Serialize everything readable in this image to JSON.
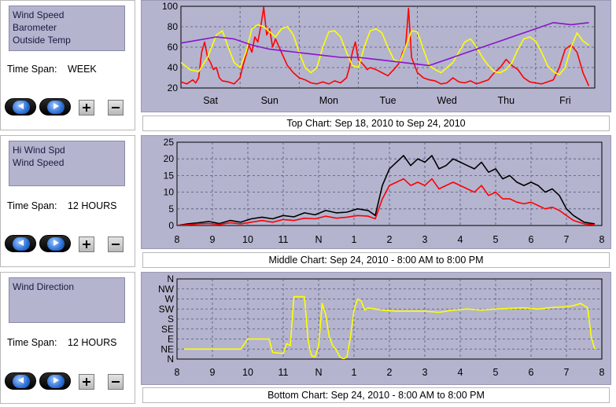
{
  "panels": [
    {
      "series_list": [
        "Wind Speed",
        "Barometer",
        "Outside Temp"
      ],
      "timespan_label": "Time Span:",
      "timespan_value": "WEEK",
      "caption": "Top Chart:  Sep 18, 2010  to  Sep 24, 2010"
    },
    {
      "series_list": [
        "Hi Wind Spd",
        "Wind Speed"
      ],
      "timespan_label": "Time Span:",
      "timespan_value": "12 HOURS",
      "caption": "Middle Chart:  Sep 24, 2010 - 8:00 AM  to  8:00 PM"
    },
    {
      "series_list": [
        "Wind Direction"
      ],
      "timespan_label": "Time Span:",
      "timespan_value": "12 HOURS",
      "caption": "Bottom Chart:  Sep 24, 2010 - 8:00 AM  to  8:00 PM"
    }
  ],
  "colors": {
    "plot_bg": "#b4b4cf",
    "grid": "#55557a",
    "red": "#ff0000",
    "yellow": "#ffff00",
    "purple": "#8a14c8",
    "black": "#000000"
  },
  "chart_data": [
    {
      "type": "line",
      "x_labels": [
        "Sat",
        "Sun",
        "Mon",
        "Tue",
        "Wed",
        "Thu",
        "Fri"
      ],
      "yticks": [
        "20",
        "40",
        "60",
        "80",
        "100"
      ],
      "ylim": [
        20,
        100
      ],
      "xlim": [
        0,
        7
      ],
      "grid": true,
      "series": [
        {
          "color": "#ff0000",
          "x": [
            0,
            0.1,
            0.2,
            0.25,
            0.3,
            0.35,
            0.4,
            0.45,
            0.5,
            0.55,
            0.6,
            0.65,
            0.7,
            0.8,
            0.9,
            1.0,
            1.05,
            1.1,
            1.15,
            1.2,
            1.25,
            1.3,
            1.35,
            1.4,
            1.45,
            1.5,
            1.55,
            1.6,
            1.7,
            1.8,
            1.9,
            2.0,
            2.1,
            2.2,
            2.3,
            2.4,
            2.5,
            2.6,
            2.7,
            2.8,
            2.85,
            2.9,
            2.95,
            3.0,
            3.05,
            3.1,
            3.15,
            3.2,
            3.3,
            3.4,
            3.5,
            3.6,
            3.7,
            3.75,
            3.8,
            3.85,
            3.9,
            4.0,
            4.1,
            4.2,
            4.3,
            4.4,
            4.5,
            4.6,
            4.7,
            4.8,
            4.9,
            5.0,
            5.1,
            5.2,
            5.3,
            5.4,
            5.5,
            5.6,
            5.7,
            5.8,
            5.9,
            6.0,
            6.1,
            6.2,
            6.3,
            6.4,
            6.5,
            6.6,
            6.7,
            6.8,
            6.9
          ],
          "y": [
            26,
            24,
            28,
            25,
            30,
            55,
            65,
            50,
            45,
            38,
            40,
            30,
            27,
            26,
            24,
            30,
            42,
            52,
            62,
            55,
            70,
            65,
            80,
            99,
            72,
            78,
            60,
            68,
            55,
            42,
            35,
            30,
            28,
            25,
            24,
            26,
            24,
            27,
            25,
            30,
            40,
            55,
            65,
            48,
            45,
            42,
            38,
            40,
            38,
            35,
            32,
            38,
            45,
            55,
            60,
            98,
            50,
            35,
            30,
            28,
            27,
            24,
            25,
            30,
            26,
            25,
            27,
            24,
            26,
            28,
            35,
            40,
            48,
            42,
            38,
            30,
            26,
            25,
            24,
            26,
            28,
            40,
            58,
            62,
            55,
            35,
            22
          ]
        },
        {
          "color": "#ffff00",
          "x": [
            0,
            0.15,
            0.3,
            0.45,
            0.6,
            0.7,
            0.8,
            0.9,
            1.0,
            1.1,
            1.2,
            1.3,
            1.4,
            1.5,
            1.6,
            1.7,
            1.8,
            1.9,
            2.0,
            2.1,
            2.2,
            2.3,
            2.4,
            2.5,
            2.6,
            2.7,
            2.8,
            2.9,
            3.0,
            3.1,
            3.2,
            3.3,
            3.4,
            3.5,
            3.6,
            3.7,
            3.8,
            3.9,
            4.0,
            4.1,
            4.2,
            4.3,
            4.4,
            4.5,
            4.6,
            4.7,
            4.8,
            4.9,
            5.0,
            5.1,
            5.2,
            5.3,
            5.4,
            5.5,
            5.6,
            5.7,
            5.8,
            5.9,
            6.0,
            6.1,
            6.2,
            6.3,
            6.4,
            6.5,
            6.6,
            6.7,
            6.8,
            6.9
          ],
          "y": [
            45,
            38,
            36,
            50,
            72,
            76,
            60,
            45,
            40,
            55,
            78,
            82,
            80,
            75,
            70,
            78,
            80,
            72,
            55,
            40,
            35,
            40,
            60,
            75,
            76,
            70,
            55,
            42,
            40,
            60,
            76,
            78,
            74,
            60,
            48,
            45,
            60,
            76,
            75,
            58,
            42,
            38,
            35,
            40,
            45,
            55,
            65,
            68,
            60,
            50,
            42,
            36,
            35,
            38,
            45,
            58,
            68,
            70,
            66,
            55,
            42,
            36,
            33,
            40,
            60,
            74,
            66,
            62
          ]
        },
        {
          "color": "#8a14c8",
          "x": [
            0,
            0.3,
            0.6,
            0.9,
            1.2,
            1.5,
            1.8,
            2.1,
            2.4,
            2.7,
            3.0,
            3.3,
            3.6,
            3.9,
            4.2,
            4.5,
            4.8,
            5.1,
            5.4,
            5.7,
            6.0,
            6.3,
            6.6,
            6.9
          ],
          "y": [
            64,
            67,
            70,
            68,
            62,
            58,
            56,
            54,
            52,
            50,
            50,
            48,
            46,
            44,
            42,
            48,
            54,
            60,
            66,
            72,
            78,
            84,
            82,
            84
          ]
        }
      ]
    },
    {
      "type": "line",
      "x_labels": [
        "8",
        "9",
        "10",
        "11",
        "N",
        "1",
        "2",
        "3",
        "4",
        "5",
        "6",
        "7",
        "8"
      ],
      "yticks": [
        "0",
        "5",
        "10",
        "15",
        "20",
        "25"
      ],
      "ylim": [
        0,
        25
      ],
      "xlim": [
        0,
        12
      ],
      "grid": true,
      "series": [
        {
          "name": "Hi Wind Spd",
          "color": "#000000",
          "x": [
            0,
            0.3,
            0.6,
            0.9,
            1.2,
            1.5,
            1.8,
            2.1,
            2.4,
            2.7,
            3.0,
            3.3,
            3.6,
            3.9,
            4.2,
            4.5,
            4.8,
            5.1,
            5.4,
            5.6,
            5.8,
            6.0,
            6.2,
            6.4,
            6.6,
            6.8,
            7.0,
            7.2,
            7.4,
            7.6,
            7.8,
            8.0,
            8.2,
            8.4,
            8.6,
            8.8,
            9.0,
            9.2,
            9.4,
            9.6,
            9.8,
            10.0,
            10.2,
            10.4,
            10.6,
            10.8,
            11.0,
            11.2,
            11.5,
            11.8
          ],
          "y": [
            0,
            0.5,
            0.8,
            1.2,
            0.6,
            1.5,
            1,
            2,
            2.5,
            2,
            3,
            2.6,
            3.8,
            3.2,
            4.5,
            3.8,
            4,
            5,
            4.5,
            3,
            12,
            17,
            19,
            21,
            18,
            20,
            19,
            21,
            17,
            18,
            20,
            19,
            18,
            17,
            19,
            16,
            17,
            14,
            15,
            13,
            12,
            13,
            12,
            10,
            11,
            9,
            5,
            3,
            1,
            0.5
          ]
        },
        {
          "name": "Wind Speed",
          "color": "#ff0000",
          "x": [
            0,
            0.3,
            0.6,
            0.9,
            1.2,
            1.5,
            1.8,
            2.1,
            2.4,
            2.7,
            3.0,
            3.3,
            3.6,
            3.9,
            4.2,
            4.5,
            4.8,
            5.1,
            5.4,
            5.6,
            5.8,
            6.0,
            6.2,
            6.4,
            6.6,
            6.8,
            7.0,
            7.2,
            7.4,
            7.6,
            7.8,
            8.0,
            8.2,
            8.4,
            8.6,
            8.8,
            9.0,
            9.2,
            9.4,
            9.6,
            9.8,
            10.0,
            10.2,
            10.4,
            10.6,
            10.8,
            11.0,
            11.2,
            11.5,
            11.8
          ],
          "y": [
            0,
            0.2,
            0.5,
            0.6,
            0.3,
            0.8,
            0.5,
            1,
            1.5,
            1,
            1.8,
            1.5,
            2.2,
            2,
            2.8,
            2.2,
            2.5,
            3,
            2.8,
            2,
            8,
            12,
            13,
            14,
            12,
            13,
            12,
            14,
            11,
            12,
            13,
            12,
            11,
            10,
            12,
            9,
            10,
            8,
            8,
            7,
            6.5,
            7,
            6,
            5,
            5.5,
            4.5,
            3,
            1.5,
            0.5,
            0.2
          ]
        }
      ]
    },
    {
      "type": "line",
      "x_labels": [
        "8",
        "9",
        "10",
        "11",
        "N",
        "1",
        "2",
        "3",
        "4",
        "5",
        "6",
        "7",
        "8"
      ],
      "yticks": [
        "N",
        "NE",
        "E",
        "SE",
        "S",
        "SW",
        "W",
        "NW",
        "N"
      ],
      "ylim": [
        0,
        360
      ],
      "xlim": [
        0,
        12
      ],
      "grid": true,
      "series": [
        {
          "name": "Wind Direction",
          "color": "#ffff00",
          "x": [
            0.2,
            0.8,
            1.8,
            2.0,
            2.6,
            2.7,
            3.0,
            3.1,
            3.2,
            3.3,
            3.4,
            3.6,
            3.7,
            3.75,
            3.8,
            3.9,
            4.0,
            4.1,
            4.2,
            4.3,
            4.4,
            4.5,
            4.6,
            4.7,
            4.8,
            4.9,
            5.0,
            5.1,
            5.2,
            5.3,
            5.4,
            5.6,
            5.8,
            6.2,
            6.6,
            7.0,
            7.4,
            7.8,
            8.2,
            8.6,
            9.0,
            9.4,
            9.8,
            10.2,
            10.6,
            11.0,
            11.2,
            11.4,
            11.6,
            11.7,
            11.8
          ],
          "y": [
            45,
            45,
            45,
            90,
            90,
            30,
            25,
            70,
            60,
            280,
            280,
            280,
            90,
            45,
            15,
            10,
            60,
            250,
            200,
            100,
            60,
            40,
            10,
            0,
            10,
            100,
            220,
            270,
            260,
            220,
            230,
            225,
            220,
            215,
            215,
            215,
            210,
            220,
            225,
            220,
            225,
            228,
            230,
            225,
            232,
            235,
            240,
            250,
            230,
            100,
            45
          ]
        }
      ]
    }
  ]
}
